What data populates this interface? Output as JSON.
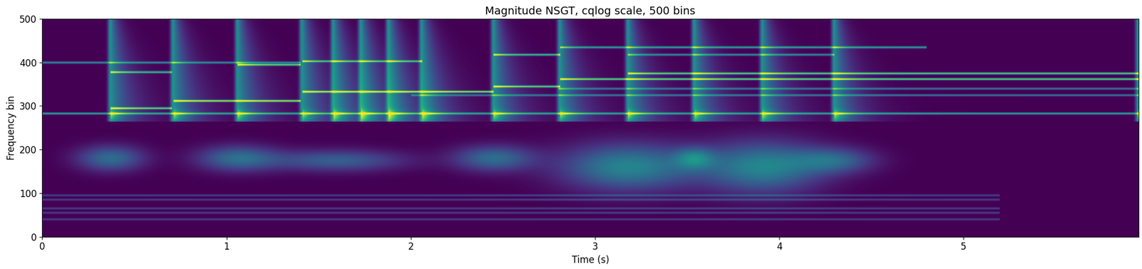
{
  "chart_data": {
    "type": "heatmap",
    "title": "Magnitude NSGT, cqlog scale, 500 bins",
    "x_label": "Time (s)",
    "y_label": "Frequency bin",
    "xlim": [
      0,
      5.95
    ],
    "ylim": [
      0,
      500
    ],
    "xticks": [
      0,
      1,
      2,
      3,
      4,
      5
    ],
    "yticks": [
      0,
      100,
      200,
      300,
      400,
      500
    ],
    "color": "viridis",
    "grid": false,
    "onsets": [
      0.37,
      0.71,
      1.06,
      1.41,
      1.58,
      1.73,
      1.88,
      2.06,
      2.45,
      2.81,
      3.18,
      3.54,
      3.91,
      4.3,
      5.95
    ],
    "onset_bins": [
      265,
      500
    ],
    "partials": [
      {
        "bin": 283,
        "start": 0.0,
        "end": 5.95,
        "level": 0.6
      },
      {
        "bin": 400,
        "start": 0.0,
        "end": 1.4,
        "level": 0.5
      },
      {
        "bin": 295,
        "start": 0.37,
        "end": 0.7,
        "level": 0.8
      },
      {
        "bin": 378,
        "start": 0.37,
        "end": 0.7,
        "level": 0.7
      },
      {
        "bin": 312,
        "start": 0.71,
        "end": 1.4,
        "level": 0.9
      },
      {
        "bin": 395,
        "start": 1.06,
        "end": 1.4,
        "level": 0.8
      },
      {
        "bin": 333,
        "start": 1.41,
        "end": 2.45,
        "level": 0.9
      },
      {
        "bin": 403,
        "start": 1.41,
        "end": 2.06,
        "level": 0.7
      },
      {
        "bin": 345,
        "start": 2.45,
        "end": 2.81,
        "level": 0.8
      },
      {
        "bin": 418,
        "start": 2.45,
        "end": 2.81,
        "level": 0.7
      },
      {
        "bin": 362,
        "start": 2.81,
        "end": 5.95,
        "level": 0.8
      },
      {
        "bin": 375,
        "start": 3.18,
        "end": 5.95,
        "level": 0.8
      },
      {
        "bin": 435,
        "start": 2.81,
        "end": 4.8,
        "level": 0.6
      },
      {
        "bin": 418,
        "start": 3.18,
        "end": 4.3,
        "level": 0.5
      },
      {
        "bin": 325,
        "start": 2.0,
        "end": 5.95,
        "level": 0.4
      },
      {
        "bin": 340,
        "start": 2.8,
        "end": 5.95,
        "level": 0.4
      }
    ],
    "low_bands": [
      {
        "time": 0.37,
        "bin": 180,
        "time_width": 0.25,
        "bin_width": 30,
        "level": 0.35
      },
      {
        "time": 1.06,
        "bin": 180,
        "time_width": 0.3,
        "bin_width": 30,
        "level": 0.35
      },
      {
        "time": 1.6,
        "bin": 175,
        "time_width": 0.5,
        "bin_width": 25,
        "level": 0.3
      },
      {
        "time": 2.45,
        "bin": 180,
        "time_width": 0.3,
        "bin_width": 30,
        "level": 0.35
      },
      {
        "time": 3.18,
        "bin": 160,
        "time_width": 0.5,
        "bin_width": 55,
        "level": 0.45
      },
      {
        "time": 3.54,
        "bin": 180,
        "time_width": 0.15,
        "bin_width": 25,
        "level": 0.3
      },
      {
        "time": 3.91,
        "bin": 160,
        "time_width": 0.45,
        "bin_width": 60,
        "level": 0.45
      },
      {
        "time": 4.3,
        "bin": 175,
        "time_width": 0.3,
        "bin_width": 30,
        "level": 0.3
      }
    ],
    "bass_lines": [
      {
        "bin": 40,
        "start": 0.0,
        "end": 5.2,
        "level": 0.2
      },
      {
        "bin": 55,
        "start": 0.0,
        "end": 5.2,
        "level": 0.2
      },
      {
        "bin": 65,
        "start": 0.0,
        "end": 5.2,
        "level": 0.2
      },
      {
        "bin": 85,
        "start": 0.0,
        "end": 5.2,
        "level": 0.2
      },
      {
        "bin": 95,
        "start": 0.0,
        "end": 5.2,
        "level": 0.2
      }
    ]
  }
}
